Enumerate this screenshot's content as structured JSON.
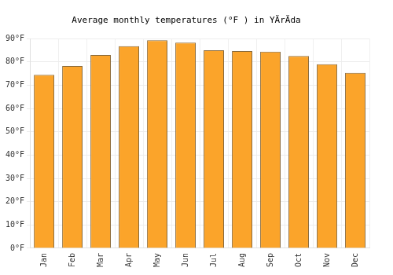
{
  "chart_data": {
    "type": "bar",
    "title": "Average monthly temperatures (°F ) in YÄrÄda",
    "categories": [
      "Jan",
      "Feb",
      "Mar",
      "Apr",
      "May",
      "Jun",
      "Jul",
      "Aug",
      "Sep",
      "Oct",
      "Nov",
      "Dec"
    ],
    "values": [
      74.5,
      78.3,
      83,
      86.8,
      89.3,
      88.3,
      85,
      84.7,
      84.4,
      82.6,
      79,
      75.3
    ],
    "color": "#fba42a",
    "ylim": [
      0,
      90
    ],
    "yticks": [
      {
        "value": 0,
        "label": "0°F"
      },
      {
        "value": 10,
        "label": "10°F"
      },
      {
        "value": 20,
        "label": "20°F"
      },
      {
        "value": 30,
        "label": "30°F"
      },
      {
        "value": 40,
        "label": "40°F"
      },
      {
        "value": 50,
        "label": "50°F"
      },
      {
        "value": 60,
        "label": "60°F"
      },
      {
        "value": 70,
        "label": "70°F"
      },
      {
        "value": 80,
        "label": "80°F"
      },
      {
        "value": 90,
        "label": "90°F"
      }
    ],
    "grid": true
  }
}
